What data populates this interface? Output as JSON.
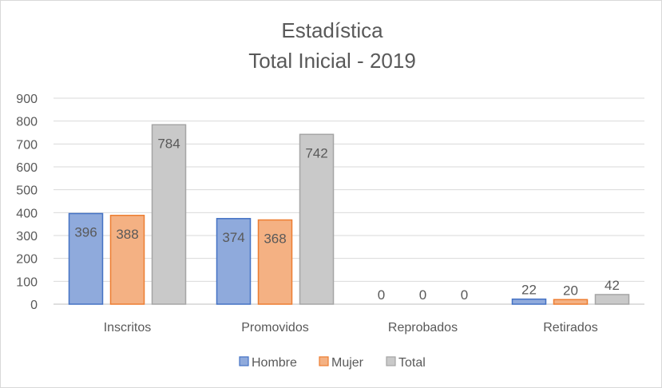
{
  "chart_data": {
    "type": "bar",
    "title": [
      "Estadística",
      "Total Inicial - 2019"
    ],
    "categories": [
      "Inscritos",
      "Promovidos",
      "Reprobados",
      "Retirados"
    ],
    "series": [
      {
        "name": "Hombre",
        "values": [
          396,
          374,
          0,
          22
        ],
        "fill": "#8faadc",
        "stroke": "#4472c4"
      },
      {
        "name": "Mujer",
        "values": [
          388,
          368,
          0,
          20
        ],
        "fill": "#f4b183",
        "stroke": "#ed7d31"
      },
      {
        "name": "Total",
        "values": [
          784,
          742,
          0,
          42
        ],
        "fill": "#c9c9c9",
        "stroke": "#a5a5a5"
      }
    ],
    "ylim": [
      0,
      900
    ],
    "yticks": [
      0,
      100,
      200,
      300,
      400,
      500,
      600,
      700,
      800,
      900
    ],
    "xlabel": "",
    "ylabel": "",
    "grid": true,
    "legend": "bottom",
    "data_labels": "inside-end"
  }
}
